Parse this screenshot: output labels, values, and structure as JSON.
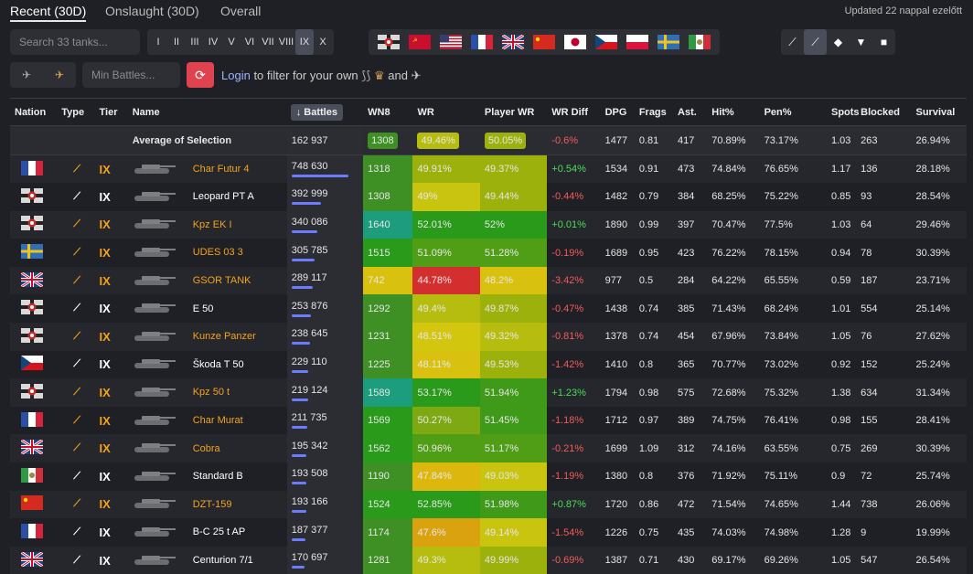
{
  "header": {
    "tabs": [
      "Recent (30D)",
      "Onslaught (30D)",
      "Overall"
    ],
    "updated": "Updated 22 nappal ezelőtt"
  },
  "filters": {
    "search_placeholder": "Search 33 tanks...",
    "tiers": [
      "I",
      "II",
      "III",
      "IV",
      "V",
      "VI",
      "VII",
      "VIII",
      "IX",
      "X"
    ],
    "selected_tier": "IX",
    "nation_flags": [
      "germany",
      "ussr",
      "usa",
      "france",
      "uk",
      "china",
      "japan",
      "czech",
      "poland",
      "sweden",
      "italy"
    ],
    "types": [
      "light-tank-icon",
      "medium-tank-icon",
      "heavy-tank-icon",
      "td-icon",
      "spg-icon"
    ],
    "min_battles_placeholder": "Min Battles...",
    "login_link": "Login",
    "login_text": "to filter for your own",
    "and_text": "and"
  },
  "columns": [
    "Nation",
    "Type",
    "Tier",
    "Name",
    "Battles",
    "WN8",
    "WR",
    "Player WR",
    "WR Diff",
    "DPG",
    "Frags",
    "Ast.",
    "Hit%",
    "Pen%",
    "Spots",
    "Blocked",
    "Survival"
  ],
  "average": {
    "label": "Average of Selection",
    "battles": "162 937",
    "wn8": "1308",
    "wr": "49.46%",
    "pwr": "50.05%",
    "diff": "-0.6%",
    "dpg": "1477",
    "frags": "0.81",
    "ast": "417",
    "hit": "70.89%",
    "pen": "73.17%",
    "spots": "1.03",
    "blocked": "263",
    "survival": "26.94%"
  },
  "rows": [
    {
      "flag": "france",
      "prem": true,
      "tier": "IX",
      "name": "Char Futur 4",
      "battles": "748 630",
      "bar": 1.0,
      "wn8": "1318",
      "wr": "49.91%",
      "pwr": "49.37%",
      "diff": "+0.54%",
      "dpg": "1534",
      "frags": "0.91",
      "ast": "473",
      "hit": "74.84%",
      "pen": "76.65%",
      "spots": "1.17",
      "blocked": "136",
      "survival": "28.18%",
      "wn8c": "#3e8f24",
      "wrc": "#9cb10c",
      "pwrc": "#9cb10c"
    },
    {
      "flag": "germany",
      "prem": false,
      "tier": "IX",
      "name": "Leopard PT A",
      "battles": "392 999",
      "bar": 0.52,
      "wn8": "1308",
      "wr": "49%",
      "pwr": "49.44%",
      "diff": "-0.44%",
      "dpg": "1482",
      "frags": "0.79",
      "ast": "384",
      "hit": "68.25%",
      "pen": "75.22%",
      "spots": "0.85",
      "blocked": "93",
      "survival": "28.54%",
      "wn8c": "#3e8f24",
      "wrc": "#c8c410",
      "pwrc": "#9cb10c"
    },
    {
      "flag": "germany",
      "prem": true,
      "tier": "IX",
      "name": "Kpz EK I",
      "battles": "340 086",
      "bar": 0.45,
      "wn8": "1640",
      "wr": "52.01%",
      "pwr": "52%",
      "diff": "+0.01%",
      "dpg": "1890",
      "frags": "0.99",
      "ast": "397",
      "hit": "70.47%",
      "pen": "77.5%",
      "spots": "1.03",
      "blocked": "64",
      "survival": "29.46%",
      "wn8c": "#1b9d7e",
      "wrc": "#2a9a1b",
      "pwrc": "#2a9a1b"
    },
    {
      "flag": "sweden",
      "prem": true,
      "tier": "IX",
      "name": "UDES 03 3",
      "battles": "305 785",
      "bar": 0.41,
      "wn8": "1515",
      "wr": "51.09%",
      "pwr": "51.28%",
      "diff": "-0.19%",
      "dpg": "1689",
      "frags": "0.95",
      "ast": "423",
      "hit": "76.22%",
      "pen": "78.15%",
      "spots": "0.94",
      "blocked": "78",
      "survival": "30.39%",
      "wn8c": "#2a9a1b",
      "wrc": "#4f9e16",
      "pwrc": "#4f9e16"
    },
    {
      "flag": "uk",
      "prem": true,
      "tier": "IX",
      "name": "GSOR TANK",
      "battles": "289 117",
      "bar": 0.38,
      "wn8": "742",
      "wr": "44.78%",
      "pwr": "48.2%",
      "diff": "-3.42%",
      "dpg": "977",
      "frags": "0.5",
      "ast": "284",
      "hit": "64.22%",
      "pen": "65.55%",
      "spots": "0.59",
      "blocked": "187",
      "survival": "23.71%",
      "wn8c": "#d9c20f",
      "wrc": "#d42f2f",
      "pwrc": "#d9c20f"
    },
    {
      "flag": "germany",
      "prem": false,
      "tier": "IX",
      "name": "E 50",
      "battles": "253 876",
      "bar": 0.34,
      "wn8": "1292",
      "wr": "49.4%",
      "pwr": "49.87%",
      "diff": "-0.47%",
      "dpg": "1438",
      "frags": "0.74",
      "ast": "385",
      "hit": "71.43%",
      "pen": "68.24%",
      "spots": "1.01",
      "blocked": "554",
      "survival": "25.14%",
      "wn8c": "#3e8f24",
      "wrc": "#b7bd0e",
      "pwrc": "#9cb10c"
    },
    {
      "flag": "germany",
      "prem": true,
      "tier": "IX",
      "name": "Kunze Panzer",
      "battles": "238 645",
      "bar": 0.32,
      "wn8": "1231",
      "wr": "48.51%",
      "pwr": "49.32%",
      "diff": "-0.81%",
      "dpg": "1378",
      "frags": "0.74",
      "ast": "454",
      "hit": "67.96%",
      "pen": "73.84%",
      "spots": "1.05",
      "blocked": "76",
      "survival": "27.62%",
      "wn8c": "#3e8f24",
      "wrc": "#d2c60f",
      "pwrc": "#b7bd0e"
    },
    {
      "flag": "czech",
      "prem": false,
      "tier": "IX",
      "name": "Škoda T 50",
      "battles": "229 110",
      "bar": 0.3,
      "wn8": "1225",
      "wr": "48.11%",
      "pwr": "49.53%",
      "diff": "-1.42%",
      "dpg": "1410",
      "frags": "0.8",
      "ast": "365",
      "hit": "70.77%",
      "pen": "73.02%",
      "spots": "0.92",
      "blocked": "152",
      "survival": "25.24%",
      "wn8c": "#3e8f24",
      "wrc": "#d9c20f",
      "pwrc": "#9cb10c"
    },
    {
      "flag": "germany",
      "prem": true,
      "tier": "IX",
      "name": "Kpz 50 t",
      "battles": "219 124",
      "bar": 0.29,
      "wn8": "1589",
      "wr": "53.17%",
      "pwr": "51.94%",
      "diff": "+1.23%",
      "dpg": "1794",
      "frags": "0.98",
      "ast": "575",
      "hit": "72.68%",
      "pen": "75.32%",
      "spots": "1.38",
      "blocked": "634",
      "survival": "31.34%",
      "wn8c": "#1b9d7e",
      "wrc": "#2a9a1b",
      "pwrc": "#3e9a18"
    },
    {
      "flag": "france",
      "prem": true,
      "tier": "IX",
      "name": "Char Murat",
      "battles": "211 735",
      "bar": 0.28,
      "wn8": "1569",
      "wr": "50.27%",
      "pwr": "51.45%",
      "diff": "-1.18%",
      "dpg": "1712",
      "frags": "0.97",
      "ast": "389",
      "hit": "74.75%",
      "pen": "76.41%",
      "spots": "0.98",
      "blocked": "155",
      "survival": "28.41%",
      "wn8c": "#2a9a1b",
      "wrc": "#7fa912",
      "pwrc": "#3e9a18"
    },
    {
      "flag": "uk",
      "prem": true,
      "tier": "IX",
      "name": "Cobra",
      "battles": "195 342",
      "bar": 0.26,
      "wn8": "1562",
      "wr": "50.96%",
      "pwr": "51.17%",
      "diff": "-0.21%",
      "dpg": "1699",
      "frags": "1.09",
      "ast": "312",
      "hit": "74.16%",
      "pen": "63.55%",
      "spots": "0.75",
      "blocked": "269",
      "survival": "30.39%",
      "wn8c": "#2a9a1b",
      "wrc": "#4f9e16",
      "pwrc": "#4f9e16"
    },
    {
      "flag": "italy",
      "prem": false,
      "tier": "IX",
      "name": "Standard B",
      "battles": "193 508",
      "bar": 0.26,
      "wn8": "1190",
      "wr": "47.84%",
      "pwr": "49.03%",
      "diff": "-1.19%",
      "dpg": "1380",
      "frags": "0.8",
      "ast": "376",
      "hit": "71.92%",
      "pen": "75.11%",
      "spots": "0.9",
      "blocked": "72",
      "survival": "25.74%",
      "wn8c": "#3e8f24",
      "wrc": "#dcb80f",
      "pwrc": "#c8c410"
    },
    {
      "flag": "china",
      "prem": true,
      "tier": "IX",
      "name": "DZT-159",
      "battles": "193 166",
      "bar": 0.26,
      "wn8": "1524",
      "wr": "52.85%",
      "pwr": "51.98%",
      "diff": "+0.87%",
      "dpg": "1720",
      "frags": "0.86",
      "ast": "472",
      "hit": "71.54%",
      "pen": "74.65%",
      "spots": "1.44",
      "blocked": "738",
      "survival": "26.06%",
      "wn8c": "#2a9a1b",
      "wrc": "#2a9a1b",
      "pwrc": "#3e9a18"
    },
    {
      "flag": "france",
      "prem": false,
      "tier": "IX",
      "name": "B-C 25 t AP",
      "battles": "187 377",
      "bar": 0.25,
      "wn8": "1174",
      "wr": "47.6%",
      "pwr": "49.14%",
      "diff": "-1.54%",
      "dpg": "1226",
      "frags": "0.75",
      "ast": "435",
      "hit": "74.03%",
      "pen": "74.98%",
      "spots": "1.28",
      "blocked": "9",
      "survival": "19.99%",
      "wn8c": "#3e8f24",
      "wrc": "#dba20f",
      "pwrc": "#c8c410"
    },
    {
      "flag": "uk",
      "prem": false,
      "tier": "IX",
      "name": "Centurion 7/1",
      "battles": "170 697",
      "bar": 0.23,
      "wn8": "1281",
      "wr": "49.3%",
      "pwr": "49.99%",
      "diff": "-0.69%",
      "dpg": "1387",
      "frags": "0.71",
      "ast": "430",
      "hit": "69.17%",
      "pen": "69.26%",
      "spots": "1.05",
      "blocked": "547",
      "survival": "26.54%",
      "wn8c": "#3e8f24",
      "wrc": "#b7bd0e",
      "pwrc": "#9cb10c"
    }
  ]
}
